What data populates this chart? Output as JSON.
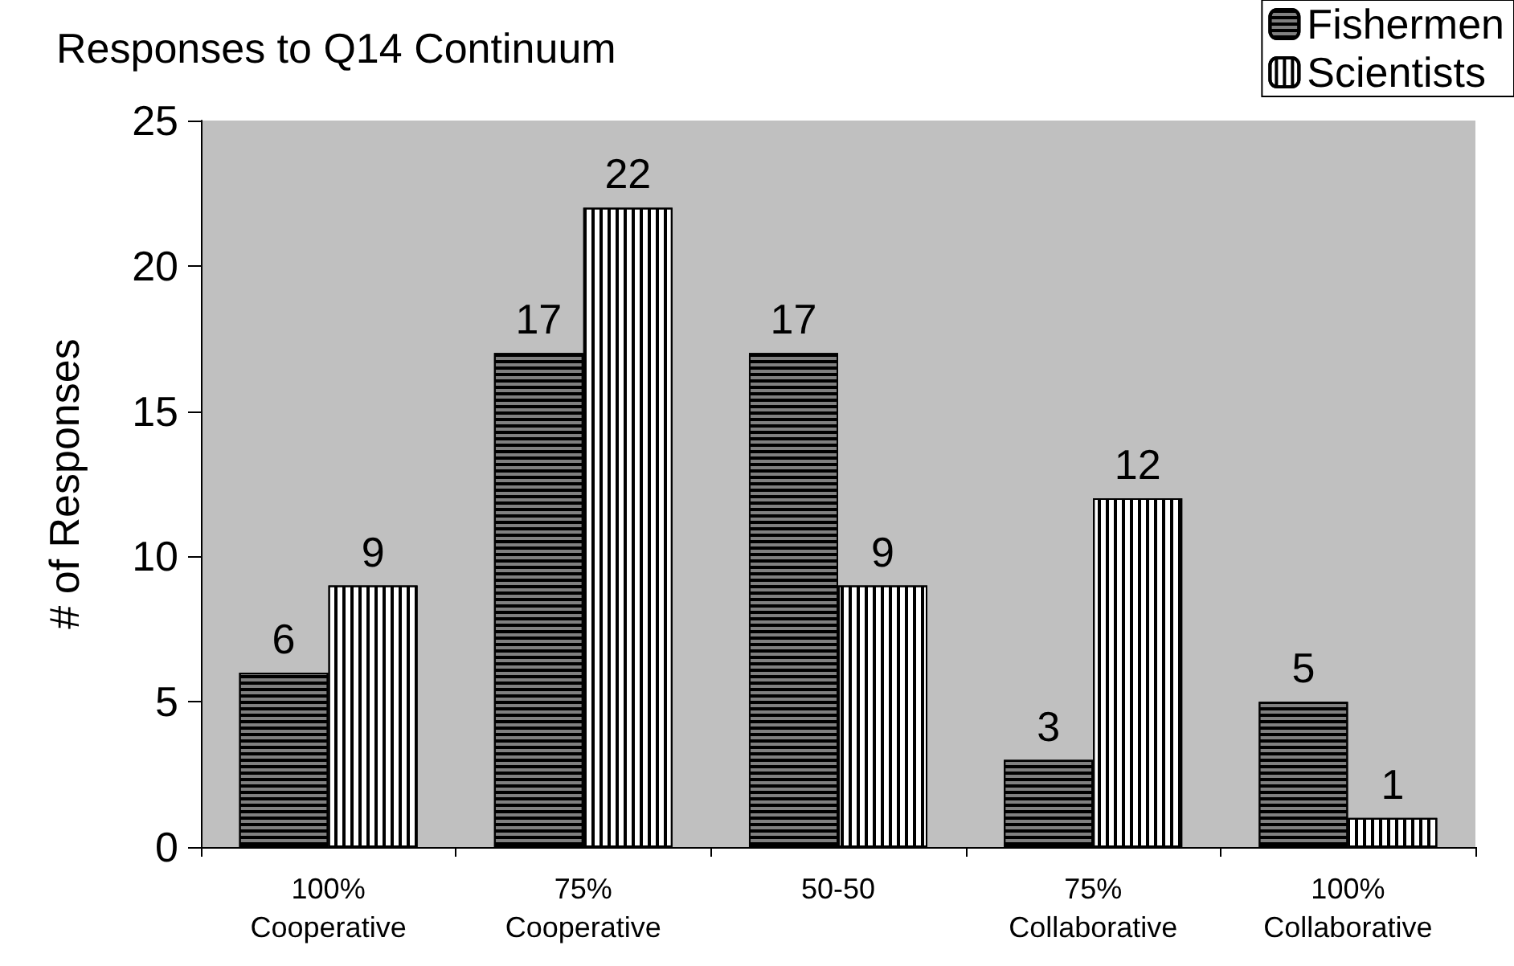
{
  "chart_data": {
    "type": "bar",
    "title": "Responses to Q14 Continuum",
    "ylabel": "# of Responses",
    "categories": [
      "100%\nCooperative",
      "75%\nCooperative",
      "50-50",
      "75%\nCollaborative",
      "100%\nCollaborative"
    ],
    "series": [
      {
        "name": "Fishermen",
        "color": "#808080",
        "values": [
          6,
          17,
          17,
          3,
          5
        ]
      },
      {
        "name": "Scientists",
        "color": "#ffffff",
        "values": [
          9,
          22,
          9,
          12,
          1
        ]
      }
    ],
    "ylim": [
      0,
      25
    ],
    "yticks": [
      0,
      5,
      10,
      15,
      20,
      25
    ],
    "grid": false,
    "legend": "top right",
    "data_labels": true
  }
}
